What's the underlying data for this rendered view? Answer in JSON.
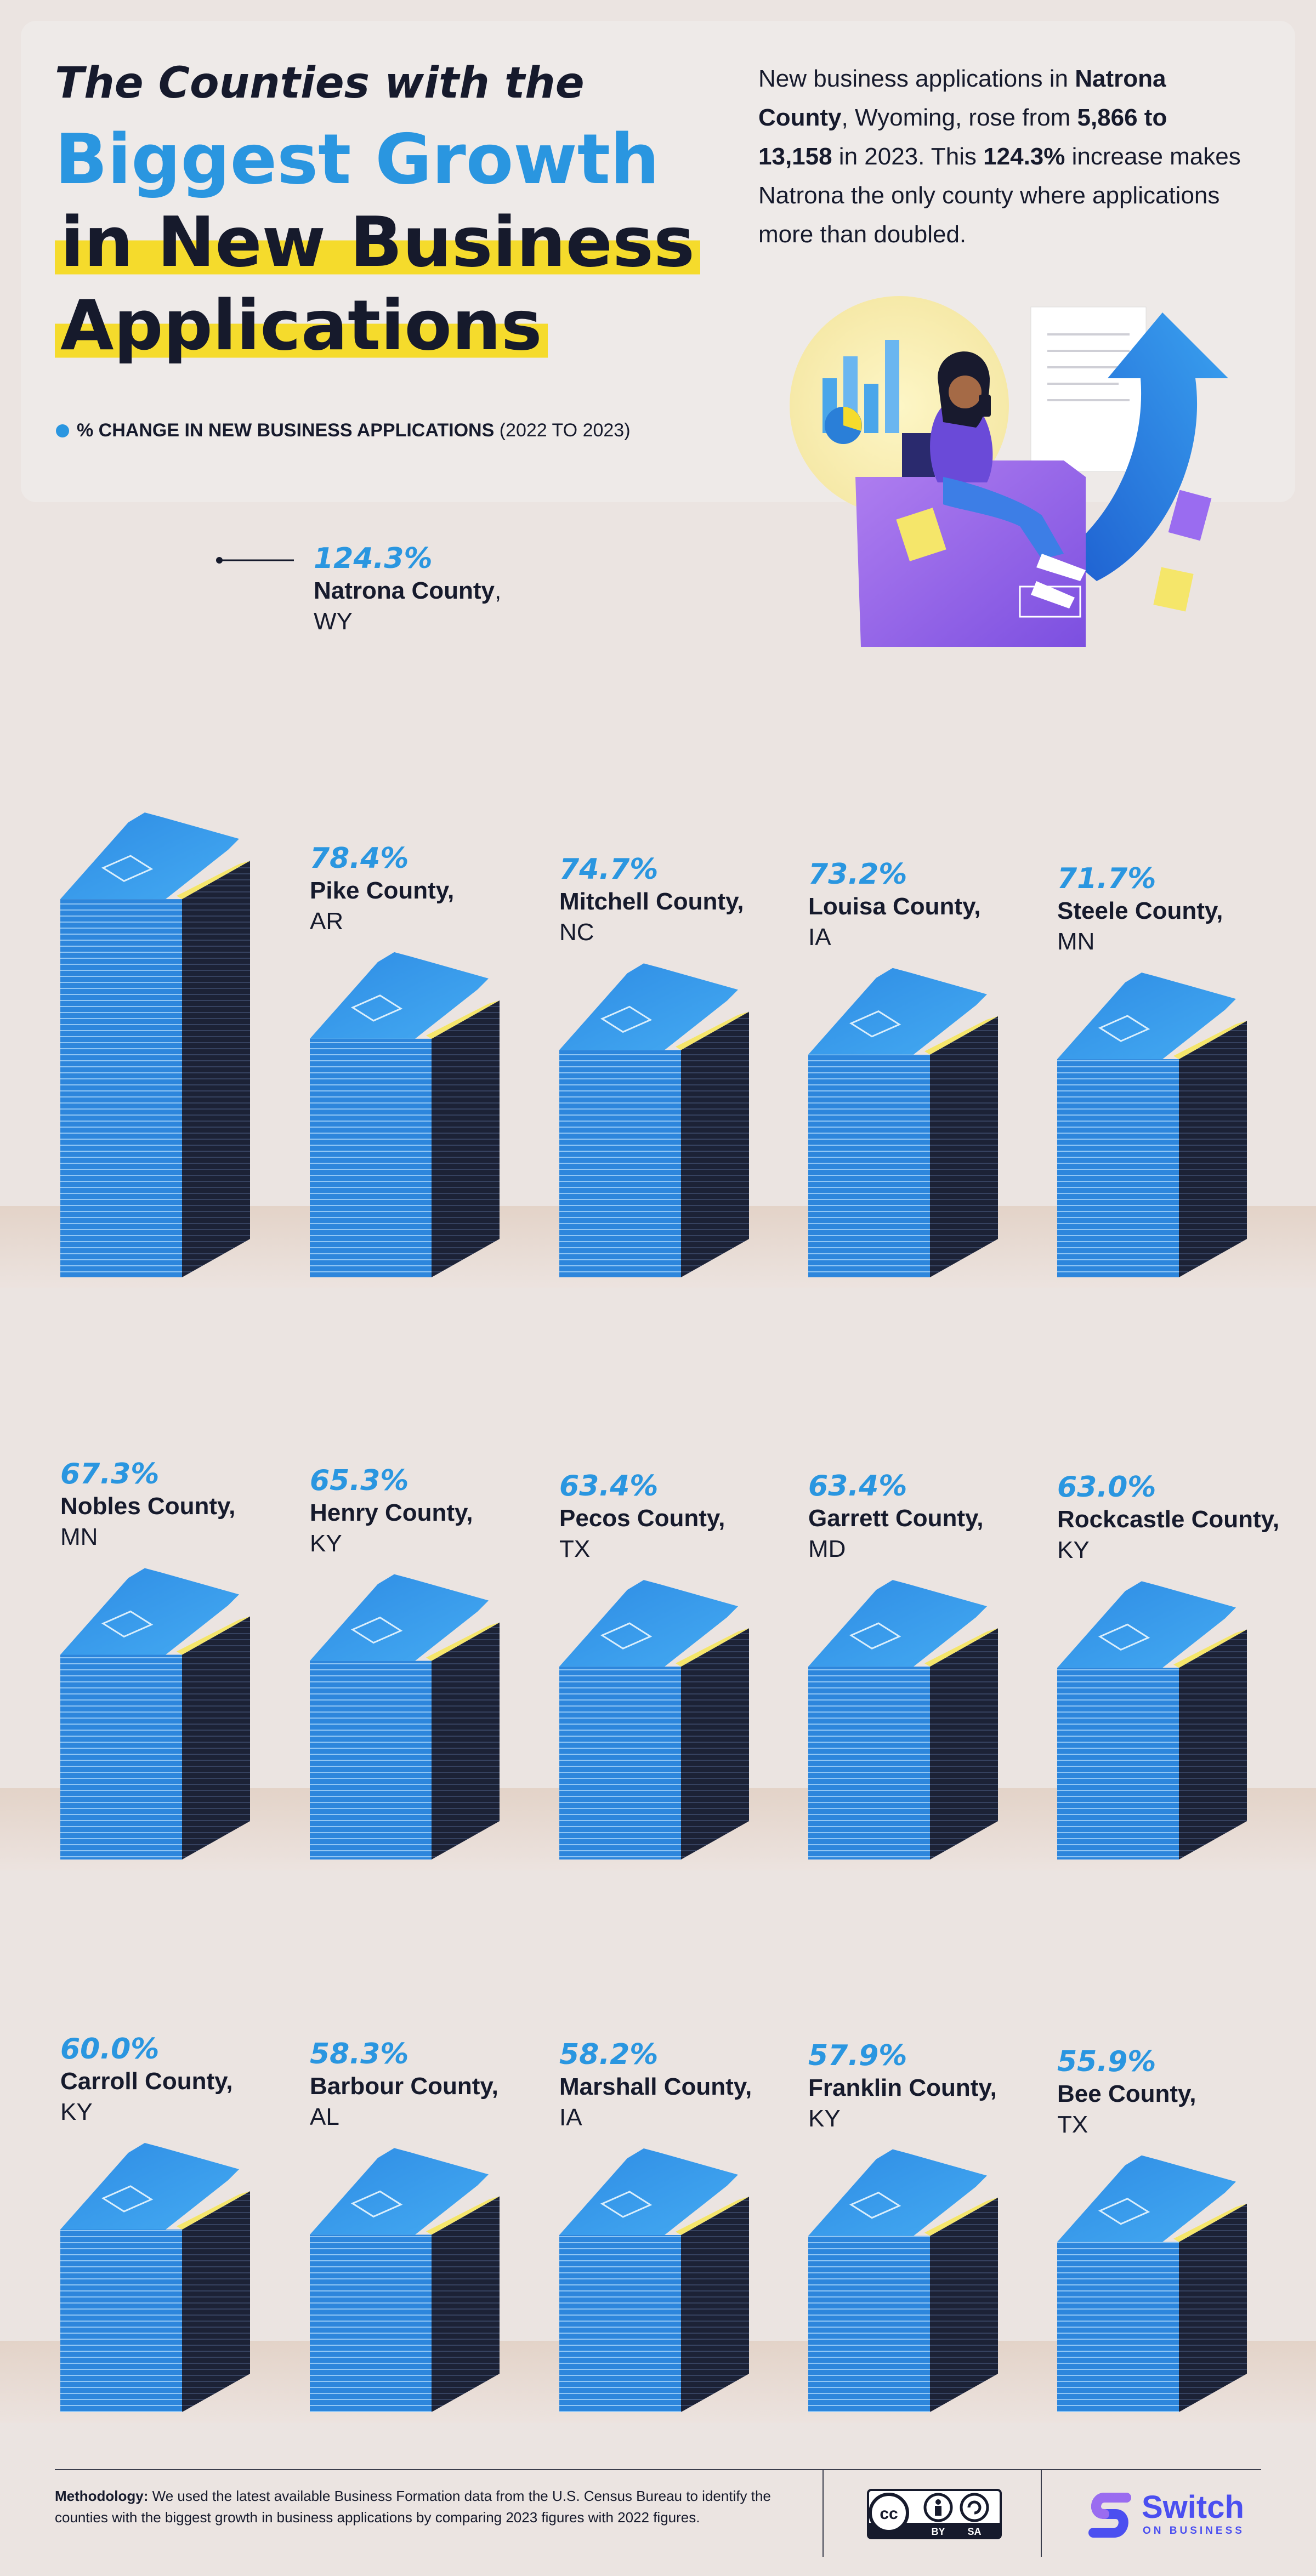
{
  "header": {
    "title_line1": "The Counties with the",
    "title_line2": "Biggest Growth",
    "title_line3": "in New Business",
    "title_line4": "Applications",
    "intro_parts": {
      "p1": "New business applications in ",
      "b1": "Natrona County",
      "p2": ", Wyoming, rose from ",
      "b2": "5,866 to 13,158",
      "p3": " in 2023. This ",
      "b3": "124.3%",
      "p4": " increase makes Natrona the only county where applications more than doubled."
    },
    "legend_label": "% CHANGE IN NEW BUSINESS APPLICATIONS",
    "legend_paren": "(2022 TO 2023)"
  },
  "colors": {
    "accent": "#2a96e0",
    "highlight": "#f5db2c",
    "dark": "#161a2c",
    "stack_front": "#2d86dc",
    "stack_side": "#1c2236",
    "background": "#ebe4e1"
  },
  "chart_data": {
    "type": "bar",
    "title": "The Counties with the Biggest Growth in New Business Applications",
    "ylabel": "% CHANGE IN NEW BUSINESS APPLICATIONS (2022 TO 2023)",
    "unit": "%",
    "series": [
      {
        "values": [
          124.3,
          78.4,
          74.7,
          73.2,
          71.7,
          67.3,
          65.3,
          63.4,
          63.4,
          63.0,
          60.0,
          58.3,
          58.2,
          57.9,
          55.9
        ]
      }
    ],
    "items": [
      {
        "pct": "124.3%",
        "county": "Natrona County",
        "state": ", WY",
        "value": 124.3
      },
      {
        "pct": "78.4%",
        "county": "Pike County",
        "state": ", AR",
        "value": 78.4
      },
      {
        "pct": "74.7%",
        "county": "Mitchell County",
        "state": ", NC",
        "value": 74.7
      },
      {
        "pct": "73.2%",
        "county": "Louisa County",
        "state": ", IA",
        "value": 73.2
      },
      {
        "pct": "71.7%",
        "county": "Steele County",
        "state": ", MN",
        "value": 71.7
      },
      {
        "pct": "67.3%",
        "county": "Nobles County",
        "state": ", MN",
        "value": 67.3
      },
      {
        "pct": "65.3%",
        "county": "Henry County",
        "state": ", KY",
        "value": 65.3
      },
      {
        "pct": "63.4%",
        "county": "Pecos County",
        "state": ", TX",
        "value": 63.4
      },
      {
        "pct": "63.4%",
        "county": "Garrett County",
        "state": ", MD",
        "value": 63.4
      },
      {
        "pct": "63.0%",
        "county": "Rockcastle County",
        "state": ", KY",
        "value": 63.0
      },
      {
        "pct": "60.0%",
        "county": "Carroll County",
        "state": ", KY",
        "value": 60.0
      },
      {
        "pct": "58.3%",
        "county": "Barbour County",
        "state": ", AL",
        "value": 58.3
      },
      {
        "pct": "58.2%",
        "county": "Marshall County",
        "state": ", IA",
        "value": 58.2
      },
      {
        "pct": "57.9%",
        "county": "Franklin County",
        "state": ", KY",
        "value": 57.9
      },
      {
        "pct": "55.9%",
        "county": "Bee County",
        "state": ", TX",
        "value": 55.9
      }
    ]
  },
  "footer": {
    "method_label": "Methodology:",
    "method_text": " We used the latest available Business Formation data from the U.S. Census Bureau to identify the counties with the biggest growth in business applications by comparing 2023 figures with 2022 figures.",
    "license_by": "BY",
    "license_sa": "SA",
    "license_cc": "cc",
    "brand": "Switch",
    "brand_sub": "ON BUSINESS"
  }
}
